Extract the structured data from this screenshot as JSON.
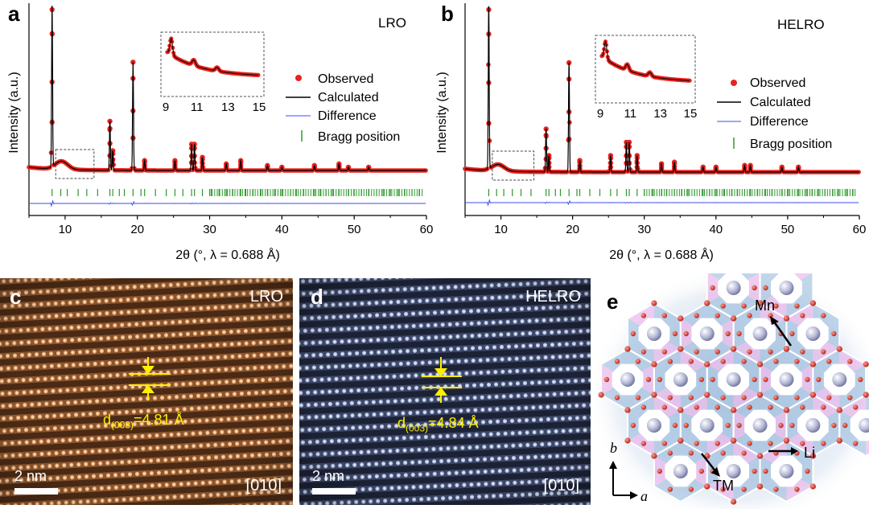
{
  "panels": {
    "a": {
      "letter": "a",
      "sample": "LRO",
      "ylabel": "Intensity (a.u.)",
      "xlabel": "2θ (°, λ = 0.688 Å)",
      "legend": {
        "observed": "Observed",
        "calculated": "Calculated",
        "difference": "Difference",
        "bragg": "Bragg position"
      }
    },
    "b": {
      "letter": "b",
      "sample": "HELRO",
      "ylabel": "Intensity (a.u.)",
      "xlabel": "2θ (°, λ = 0.688 Å)",
      "legend": {
        "observed": "Observed",
        "calculated": "Calculated",
        "difference": "Difference",
        "bragg": "Bragg position"
      }
    },
    "c": {
      "letter": "c",
      "sample": "LRO",
      "d_prefix": "d",
      "d_sub": "(003)",
      "d_value": "=4.81 Å",
      "scale": "2 nm",
      "zone": "[010]"
    },
    "d": {
      "letter": "d",
      "sample": "HELRO",
      "d_prefix": "d",
      "d_sub": "(003)",
      "d_value": "=4.84 Å",
      "scale": "2 nm",
      "zone": "[010]"
    },
    "e": {
      "letter": "e",
      "mn": "Mn",
      "li": "Li",
      "tm": "TM",
      "axis_b": "b",
      "axis_a": "a"
    }
  },
  "colors": {
    "observed": "#e8231f",
    "calculated": "#000000",
    "difference": "#3b4cf0",
    "bragg": "#2d9a2d",
    "d_marker": "#ffee00"
  },
  "chart_data": [
    {
      "id": "a",
      "type": "scatter",
      "title": "LRO",
      "xlabel": "2θ (°, λ = 0.688 Å)",
      "ylabel": "Intensity (a.u.)",
      "xlim": [
        5,
        60
      ],
      "ylim": [
        -0.1,
        1.05
      ],
      "xticks": [
        10,
        20,
        30,
        40,
        50,
        60
      ],
      "baseline": 0.02,
      "peaks": [
        {
          "x": 8.2,
          "h": 0.98
        },
        {
          "x": 16.2,
          "h": 0.3
        },
        {
          "x": 16.6,
          "h": 0.12
        },
        {
          "x": 19.4,
          "h": 0.66
        },
        {
          "x": 21.0,
          "h": 0.06
        },
        {
          "x": 25.2,
          "h": 0.06
        },
        {
          "x": 27.5,
          "h": 0.16
        },
        {
          "x": 27.9,
          "h": 0.16
        },
        {
          "x": 29.0,
          "h": 0.08
        },
        {
          "x": 32.3,
          "h": 0.04
        },
        {
          "x": 34.3,
          "h": 0.06
        },
        {
          "x": 38.0,
          "h": 0.03
        },
        {
          "x": 40.0,
          "h": 0.02
        },
        {
          "x": 44.5,
          "h": 0.03
        },
        {
          "x": 47.9,
          "h": 0.04
        },
        {
          "x": 49.2,
          "h": 0.02
        },
        {
          "x": 52.0,
          "h": 0.02
        }
      ],
      "hump": {
        "x": 9.5,
        "h": 0.05
      },
      "bragg": [
        8.2,
        9.4,
        10.3,
        11.8,
        13.0,
        14.5,
        16.2,
        16.6,
        17.5,
        18.2,
        19.4,
        20.5,
        21.0,
        22.5,
        24.0,
        25.2,
        26.3,
        27.5,
        27.9,
        29.0,
        30.2,
        31.3,
        32.3,
        33.2,
        34.3,
        35.0,
        36.0,
        37.1,
        38.0,
        39.0,
        40.0,
        41.2,
        42.0,
        43.0,
        44.5,
        45.3,
        46.1,
        47.0,
        47.9,
        49.2,
        50.0,
        51.0,
        52.0,
        53.1,
        54.0,
        55.0,
        56.1,
        57.0,
        58.0,
        59.0
      ],
      "inset": {
        "xlim": [
          9,
          15
        ],
        "xticks": [
          9,
          11,
          13,
          15
        ]
      },
      "box": {
        "x0": 8.7,
        "x1": 14.0
      }
    },
    {
      "id": "b",
      "type": "scatter",
      "title": "HELRO",
      "xlabel": "2θ (°, λ = 0.688 Å)",
      "ylabel": "Intensity (a.u.)",
      "xlim": [
        5,
        60
      ],
      "ylim": [
        -0.1,
        1.05
      ],
      "xticks": [
        10,
        20,
        30,
        40,
        50,
        60
      ],
      "baseline": 0.02,
      "peaks": [
        {
          "x": 8.3,
          "h": 0.98
        },
        {
          "x": 16.3,
          "h": 0.26
        },
        {
          "x": 16.7,
          "h": 0.1
        },
        {
          "x": 19.5,
          "h": 0.66
        },
        {
          "x": 21.0,
          "h": 0.07
        },
        {
          "x": 25.3,
          "h": 0.1
        },
        {
          "x": 27.5,
          "h": 0.18
        },
        {
          "x": 27.9,
          "h": 0.18
        },
        {
          "x": 29.0,
          "h": 0.1
        },
        {
          "x": 32.4,
          "h": 0.05
        },
        {
          "x": 34.2,
          "h": 0.06
        },
        {
          "x": 38.2,
          "h": 0.03
        },
        {
          "x": 40.0,
          "h": 0.03
        },
        {
          "x": 44.0,
          "h": 0.04
        },
        {
          "x": 44.8,
          "h": 0.04
        },
        {
          "x": 49.2,
          "h": 0.03
        },
        {
          "x": 51.5,
          "h": 0.03
        }
      ],
      "hump": {
        "x": 9.6,
        "h": 0.04
      },
      "bragg": [
        8.3,
        9.4,
        10.4,
        11.6,
        12.8,
        14.2,
        16.3,
        16.7,
        17.6,
        18.3,
        19.5,
        20.6,
        21.0,
        22.4,
        23.8,
        25.3,
        26.2,
        27.5,
        27.9,
        29.0,
        30.0,
        31.2,
        32.4,
        33.1,
        34.2,
        35.2,
        36.1,
        37.0,
        38.2,
        39.1,
        40.0,
        41.1,
        42.2,
        43.0,
        44.0,
        44.8,
        45.8,
        46.9,
        47.8,
        49.2,
        50.1,
        51.5,
        52.6,
        53.4,
        54.3,
        55.2,
        56.3,
        57.1,
        58.2,
        59.1
      ],
      "inset": {
        "xlim": [
          9,
          15
        ],
        "xticks": [
          9,
          11,
          13,
          15
        ]
      },
      "box": {
        "x0": 8.8,
        "x1": 14.6
      }
    }
  ]
}
